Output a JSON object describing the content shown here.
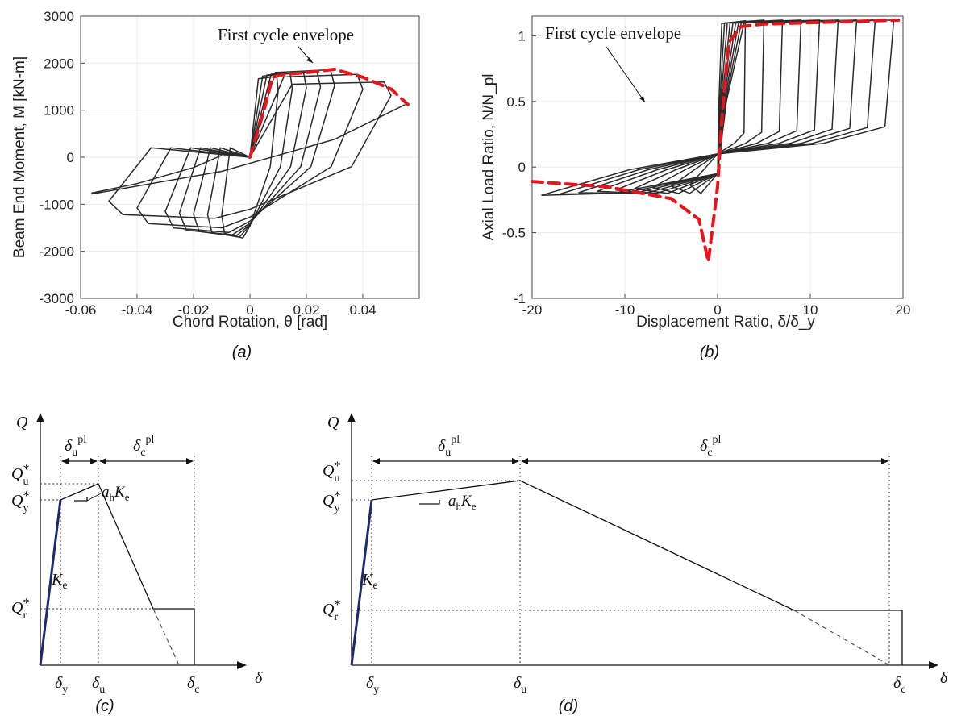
{
  "chart_data": [
    {
      "type": "line",
      "panel": "a",
      "caption": "(a)",
      "xlabel": "Chord Rotation, θ [rad]",
      "ylabel": "Beam End Moment, M [kN-m]",
      "xlim": [
        -0.06,
        0.06
      ],
      "ylim": [
        -3000,
        3000
      ],
      "xticks": [
        "-0.06",
        "-0.04",
        "-0.02",
        "0",
        "0.02",
        "0.04"
      ],
      "yticks": [
        "3000",
        "2000",
        "1000",
        "0",
        "-1000",
        "-2000",
        "-3000"
      ],
      "grid": true,
      "annotation": "First cycle envelope",
      "series": [
        {
          "role": "hysteresis",
          "cycles": [
            {
              "amp": 0.01,
              "mtop": 1720,
              "mbot": -1720
            },
            {
              "amp": 0.015,
              "mtop": 1780,
              "mbot": -1700
            },
            {
              "amp": 0.02,
              "mtop": 1800,
              "mbot": -1680
            },
            {
              "amp": 0.025,
              "mtop": 1820,
              "mbot": -1650
            },
            {
              "amp": 0.03,
              "mtop": 1860,
              "mbot": -1600
            },
            {
              "amp": 0.04,
              "mtop": 1760,
              "mbot": -1500
            },
            {
              "amp": 0.05,
              "mtop": 1600,
              "mbot": -1300
            }
          ],
          "excursion": {
            "x": [
              0.055,
              0.03,
              -0.01,
              -0.056,
              -0.056,
              -0.04,
              -0.02,
              -0.01
            ],
            "y": [
              1120,
              380,
              -300,
              -780,
              -760,
              -560,
              -220,
              40
            ]
          }
        },
        {
          "role": "envelope",
          "x": [
            0,
            0.005,
            0.008,
            0.012,
            0.02,
            0.03,
            0.04,
            0.05,
            0.056
          ],
          "y": [
            0,
            1000,
            1700,
            1760,
            1800,
            1870,
            1700,
            1450,
            1120
          ]
        }
      ]
    },
    {
      "type": "line",
      "panel": "b",
      "caption": "(b)",
      "xlabel": "Displacement Ratio, δ/δ_y",
      "ylabel": "Axial Load Ratio, N/N_pl",
      "xlim": [
        -20,
        20
      ],
      "ylim": [
        -1,
        1.15
      ],
      "xticks": [
        "-20",
        "-10",
        "0",
        "10",
        "20"
      ],
      "yticks": [
        "1",
        "0.5",
        "0",
        "-0.5",
        "-1"
      ],
      "grid": true,
      "annotation": "First cycle envelope",
      "series": [
        {
          "role": "hysteresis",
          "amps": [
            3,
            5,
            7,
            9,
            11,
            13,
            15,
            17,
            19
          ]
        },
        {
          "role": "envelope",
          "x": [
            -20,
            -12,
            -5,
            -2,
            -1,
            0,
            0.5,
            1.2,
            2.5,
            5,
            10,
            15,
            19.5
          ],
          "y": [
            -0.11,
            -0.15,
            -0.24,
            -0.4,
            -0.72,
            -0.15,
            0.4,
            0.95,
            1.07,
            1.09,
            1.1,
            1.11,
            1.12
          ]
        }
      ]
    },
    {
      "type": "line",
      "panel": "c",
      "caption": "(c)",
      "labels": {
        "Q": "Q",
        "Qu": "Q*u",
        "Qy": "Q*y",
        "Qr": "Q*r",
        "Ke": "Ke",
        "ahKe": "ahKe",
        "dup": "δupl",
        "dcp": "δcpl",
        "dy": "δy",
        "du": "δu",
        "dc": "δc",
        "d": "δ"
      },
      "series": [
        {
          "name": "backbone",
          "x": [
            0,
            1,
            3,
            5.1,
            5.1,
            7.7,
            7.7
          ],
          "y": [
            0,
            1.0,
            1.12,
            0.27,
            0.27,
            0.27,
            0
          ]
        }
      ]
    },
    {
      "type": "line",
      "panel": "d",
      "caption": "(d)",
      "labels": {
        "Q": "Q",
        "Qu": "Q*u",
        "Qy": "Q*y",
        "Qr": "Q*r",
        "Ke": "Ke",
        "ahKe": "ahKe",
        "dup": "δupl",
        "dcp": "δcpl",
        "dy": "δy",
        "du": "δu",
        "dc": "δc",
        "d": "δ"
      },
      "series": [
        {
          "name": "backbone",
          "x": [
            0,
            1,
            7.7,
            24,
            24,
            30,
            30
          ],
          "y": [
            0,
            1.0,
            1.1,
            0.27,
            0.27,
            0.27,
            0
          ]
        }
      ]
    }
  ]
}
